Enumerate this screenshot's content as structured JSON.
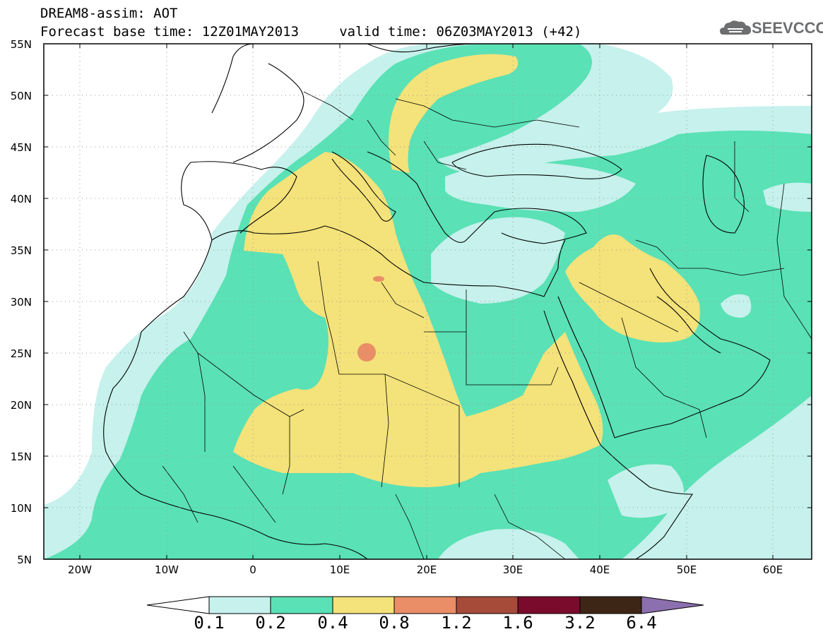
{
  "title": {
    "line1": "DREAM8-assim: AOT",
    "line2": "Forecast base time: 12Z01MAY2013     valid time: 06Z03MAY2013 (+42)"
  },
  "logo": {
    "text": "SEEVCCC",
    "icon": "cloud-icon"
  },
  "map": {
    "projection": "lat-lon",
    "lon_range": [
      -25,
      65
    ],
    "lat_range": [
      5,
      55
    ],
    "grid": "dotted",
    "lat_ticks": [
      "5N",
      "10N",
      "15N",
      "20N",
      "25N",
      "30N",
      "35N",
      "40N",
      "45N",
      "50N",
      "55N"
    ],
    "lon_ticks": [
      "20W",
      "10W",
      "0",
      "10E",
      "20E",
      "30E",
      "40E",
      "50E",
      "60E"
    ]
  },
  "colorbar": {
    "labels": [
      "0.1",
      "0.2",
      "0.4",
      "0.8",
      "1.2",
      "1.6",
      "3.2",
      "6.4"
    ],
    "colors": [
      "#c6f1ec",
      "#5ae1b5",
      "#f4e27a",
      "#e98e66",
      "#a64b3a",
      "#7b0b2c",
      "#3e2617",
      "#8c6fae"
    ],
    "extend": "both"
  }
}
